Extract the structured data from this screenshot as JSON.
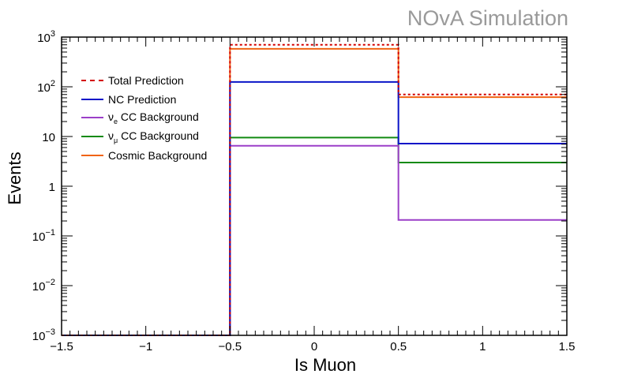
{
  "watermark": "NOvA Simulation",
  "chart_data": {
    "type": "step",
    "xlabel": "Is Muon",
    "ylabel": "Events",
    "xlim": [
      -1.5,
      1.5
    ],
    "ylim": [
      0.001,
      1000
    ],
    "yscale": "log",
    "x_ticks": [
      "−1.5",
      "−1",
      "−0.5",
      "0",
      "0.5",
      "1",
      "1.5"
    ],
    "y_ticks": [
      {
        "base": "10",
        "exp": "3",
        "plain": ""
      },
      {
        "base": "10",
        "exp": "2",
        "plain": ""
      },
      {
        "base": "",
        "exp": "",
        "plain": "10"
      },
      {
        "base": "",
        "exp": "",
        "plain": "1"
      },
      {
        "base": "10",
        "exp": "−1",
        "plain": ""
      },
      {
        "base": "10",
        "exp": "−2",
        "plain": ""
      },
      {
        "base": "10",
        "exp": "−3",
        "plain": ""
      }
    ],
    "bin_edges": [
      -1.5,
      -0.5,
      0.5,
      1.5
    ],
    "legend_position": "top-left",
    "series": [
      {
        "key": "total",
        "label": "Total Prediction",
        "color": "#d40000",
        "dashed": true,
        "values": [
          0.001,
          700,
          70
        ]
      },
      {
        "key": "nc",
        "label": "NC Prediction",
        "color": "#0a14c8",
        "dashed": false,
        "values": [
          0.001,
          125,
          7.2
        ]
      },
      {
        "key": "nue",
        "label": "ν",
        "sub": "e",
        "label_rest": " CC Background",
        "color": "#9b3fc8",
        "dashed": false,
        "values": [
          0.001,
          6.5,
          0.21
        ]
      },
      {
        "key": "numu",
        "label": "ν",
        "sub": "μ",
        "label_rest": " CC Background",
        "color": "#138a13",
        "dashed": false,
        "values": [
          0.001,
          9.5,
          3.0
        ]
      },
      {
        "key": "cosmic",
        "label": "Cosmic Background",
        "color": "#f06414",
        "dashed": false,
        "values": [
          0.001,
          580,
          62
        ]
      }
    ]
  }
}
